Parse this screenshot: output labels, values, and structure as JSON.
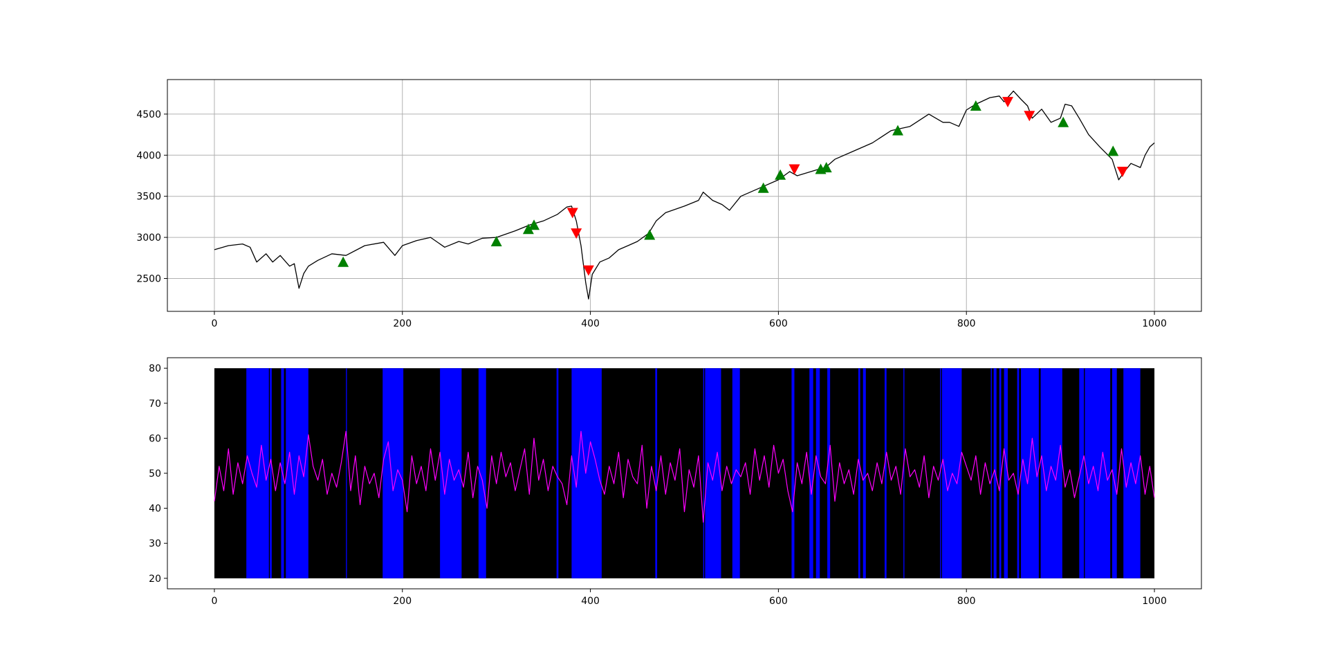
{
  "chart_data": [
    {
      "type": "line",
      "title": "",
      "xlabel": "",
      "ylabel": "",
      "xlim": [
        -50,
        1050
      ],
      "ylim": [
        2100,
        4920
      ],
      "grid": true,
      "xticks": [
        0,
        200,
        400,
        600,
        800,
        1000
      ],
      "yticks": [
        2500,
        3000,
        3500,
        4000,
        4500
      ],
      "colors": {
        "line": "#000000",
        "buy": "#008000",
        "sell": "#ff0000",
        "grid": "#b0b0b0"
      },
      "series": [
        {
          "x": [
            0,
            15,
            30,
            38,
            45,
            55,
            62,
            70,
            80,
            85,
            90,
            95,
            100,
            110,
            125,
            140,
            160,
            180,
            192,
            200,
            215,
            230,
            245,
            260,
            270,
            285,
            300,
            320,
            335,
            350,
            365,
            375,
            380,
            385,
            390,
            395,
            398,
            402,
            410,
            420,
            430,
            440,
            450,
            462,
            470,
            480,
            500,
            515,
            520,
            530,
            540,
            548,
            560,
            580,
            600,
            612,
            620,
            640,
            650,
            660,
            680,
            700,
            720,
            740,
            760,
            775,
            782,
            792,
            800,
            810,
            825,
            835,
            840,
            850,
            858,
            865,
            870,
            880,
            890,
            900,
            905,
            912,
            920,
            930,
            942,
            955,
            962,
            968,
            975,
            985,
            990,
            995,
            1000
          ],
          "y": [
            2850,
            2900,
            2920,
            2880,
            2700,
            2800,
            2700,
            2780,
            2650,
            2680,
            2380,
            2560,
            2650,
            2720,
            2800,
            2780,
            2900,
            2940,
            2780,
            2900,
            2960,
            3000,
            2880,
            2950,
            2920,
            2990,
            3000,
            3080,
            3150,
            3200,
            3280,
            3370,
            3380,
            3200,
            2900,
            2450,
            2250,
            2550,
            2700,
            2750,
            2850,
            2900,
            2950,
            3050,
            3200,
            3300,
            3380,
            3450,
            3550,
            3450,
            3400,
            3330,
            3500,
            3600,
            3700,
            3800,
            3750,
            3820,
            3850,
            3950,
            4050,
            4150,
            4300,
            4350,
            4500,
            4400,
            4400,
            4350,
            4550,
            4620,
            4700,
            4720,
            4650,
            4780,
            4680,
            4600,
            4450,
            4560,
            4400,
            4450,
            4620,
            4600,
            4450,
            4250,
            4100,
            3950,
            3700,
            3800,
            3900,
            3850,
            4000,
            4100,
            4150
          ]
        }
      ],
      "buy_signals": {
        "x": [
          137,
          300,
          334,
          340,
          463,
          584,
          602,
          645,
          651,
          727,
          810,
          903,
          956
        ],
        "y": [
          2700,
          2950,
          3100,
          3150,
          3030,
          3600,
          3760,
          3830,
          3850,
          4300,
          4600,
          4400,
          4050
        ]
      },
      "sell_signals": {
        "x": [
          381,
          385,
          398,
          617,
          844,
          867,
          966
        ],
        "y": [
          3300,
          3050,
          2600,
          3830,
          4650,
          4480,
          3800
        ]
      }
    },
    {
      "type": "line",
      "title": "",
      "xlabel": "",
      "ylabel": "",
      "xlim": [
        -50,
        1050
      ],
      "ylim": [
        17,
        83
      ],
      "grid": false,
      "xticks": [
        0,
        200,
        400,
        600,
        800,
        1000
      ],
      "yticks": [
        20,
        30,
        40,
        50,
        60,
        70,
        80
      ],
      "colors": {
        "background": "#000000",
        "band": "#0000ff",
        "line": "#ff00ff"
      },
      "band_range": [
        20,
        80
      ],
      "bands": [
        [
          34,
          58
        ],
        [
          59,
          61
        ],
        [
          71,
          74
        ],
        [
          76,
          100
        ],
        [
          140,
          141
        ],
        [
          179,
          201
        ],
        [
          240,
          263
        ],
        [
          281,
          289
        ],
        [
          364,
          366
        ],
        [
          380,
          412
        ],
        [
          469,
          471
        ],
        [
          520,
          521
        ],
        [
          522,
          539
        ],
        [
          551,
          559
        ],
        [
          614,
          617
        ],
        [
          633,
          637
        ],
        [
          640,
          644
        ],
        [
          652,
          655
        ],
        [
          685,
          687
        ],
        [
          690,
          693
        ],
        [
          713,
          715
        ],
        [
          733,
          734
        ],
        [
          772,
          773
        ],
        [
          774,
          795
        ],
        [
          826,
          827
        ],
        [
          829,
          832
        ],
        [
          835,
          837
        ],
        [
          840,
          844
        ],
        [
          854,
          856
        ],
        [
          858,
          877
        ],
        [
          879,
          902
        ],
        [
          920,
          925
        ],
        [
          926,
          953
        ],
        [
          955,
          960
        ],
        [
          967,
          985
        ]
      ],
      "series": [
        {
          "x": [
            0,
            5,
            10,
            15,
            20,
            25,
            30,
            35,
            40,
            45,
            50,
            55,
            60,
            65,
            70,
            75,
            80,
            85,
            90,
            95,
            100,
            105,
            110,
            115,
            120,
            125,
            130,
            135,
            140,
            145,
            150,
            155,
            160,
            165,
            170,
            175,
            180,
            185,
            190,
            195,
            200,
            205,
            210,
            215,
            220,
            225,
            230,
            235,
            240,
            245,
            250,
            255,
            260,
            265,
            270,
            275,
            280,
            285,
            290,
            295,
            300,
            305,
            310,
            315,
            320,
            325,
            330,
            335,
            340,
            345,
            350,
            355,
            360,
            365,
            370,
            375,
            380,
            385,
            390,
            395,
            400,
            405,
            410,
            415,
            420,
            425,
            430,
            435,
            440,
            445,
            450,
            455,
            460,
            465,
            470,
            475,
            480,
            485,
            490,
            495,
            500,
            505,
            510,
            515,
            520,
            525,
            530,
            535,
            540,
            545,
            550,
            555,
            560,
            565,
            570,
            575,
            580,
            585,
            590,
            595,
            600,
            605,
            610,
            615,
            620,
            625,
            630,
            635,
            640,
            645,
            650,
            655,
            660,
            665,
            670,
            675,
            680,
            685,
            690,
            695,
            700,
            705,
            710,
            715,
            720,
            725,
            730,
            735,
            740,
            745,
            750,
            755,
            760,
            765,
            770,
            775,
            780,
            785,
            790,
            795,
            800,
            805,
            810,
            815,
            820,
            825,
            830,
            835,
            840,
            845,
            850,
            855,
            860,
            865,
            870,
            875,
            880,
            885,
            890,
            895,
            900,
            905,
            910,
            915,
            920,
            925,
            930,
            935,
            940,
            945,
            950,
            955,
            960,
            965,
            970,
            975,
            980,
            985,
            990,
            995,
            1000
          ],
          "y": [
            42,
            52,
            45,
            57,
            44,
            53,
            47,
            55,
            50,
            46,
            58,
            48,
            54,
            45,
            53,
            47,
            56,
            44,
            55,
            49,
            61,
            52,
            48,
            54,
            44,
            50,
            46,
            53,
            62,
            45,
            55,
            41,
            52,
            47,
            50,
            43,
            54,
            59,
            45,
            51,
            48,
            39,
            55,
            47,
            52,
            45,
            57,
            48,
            56,
            44,
            54,
            48,
            51,
            46,
            56,
            43,
            52,
            48,
            40,
            55,
            47,
            56,
            49,
            53,
            45,
            51,
            57,
            44,
            60,
            48,
            54,
            45,
            52,
            49,
            47,
            41,
            55,
            46,
            62,
            50,
            59,
            54,
            48,
            44,
            52,
            47,
            56,
            43,
            54,
            49,
            47,
            58,
            40,
            52,
            45,
            55,
            44,
            53,
            48,
            57,
            39,
            51,
            46,
            55,
            36,
            53,
            48,
            56,
            45,
            52,
            47,
            51,
            49,
            53,
            44,
            57,
            48,
            55,
            46,
            58,
            50,
            54,
            45,
            39,
            53,
            47,
            56,
            44,
            55,
            49,
            47,
            58,
            42,
            53,
            47,
            51,
            44,
            54,
            48,
            50,
            45,
            53,
            47,
            56,
            48,
            52,
            44,
            57,
            49,
            51,
            46,
            55,
            43,
            52,
            48,
            54,
            45,
            50,
            47,
            56,
            52,
            48,
            55,
            44,
            53,
            47,
            51,
            45,
            57,
            48,
            50,
            44,
            54,
            47,
            60,
            49,
            55,
            45,
            52,
            48,
            58,
            46,
            51,
            43,
            49,
            55,
            47,
            52,
            45,
            56,
            48,
            51,
            44,
            57,
            46,
            53,
            47,
            55,
            44,
            52,
            43
          ]
        }
      ]
    }
  ]
}
